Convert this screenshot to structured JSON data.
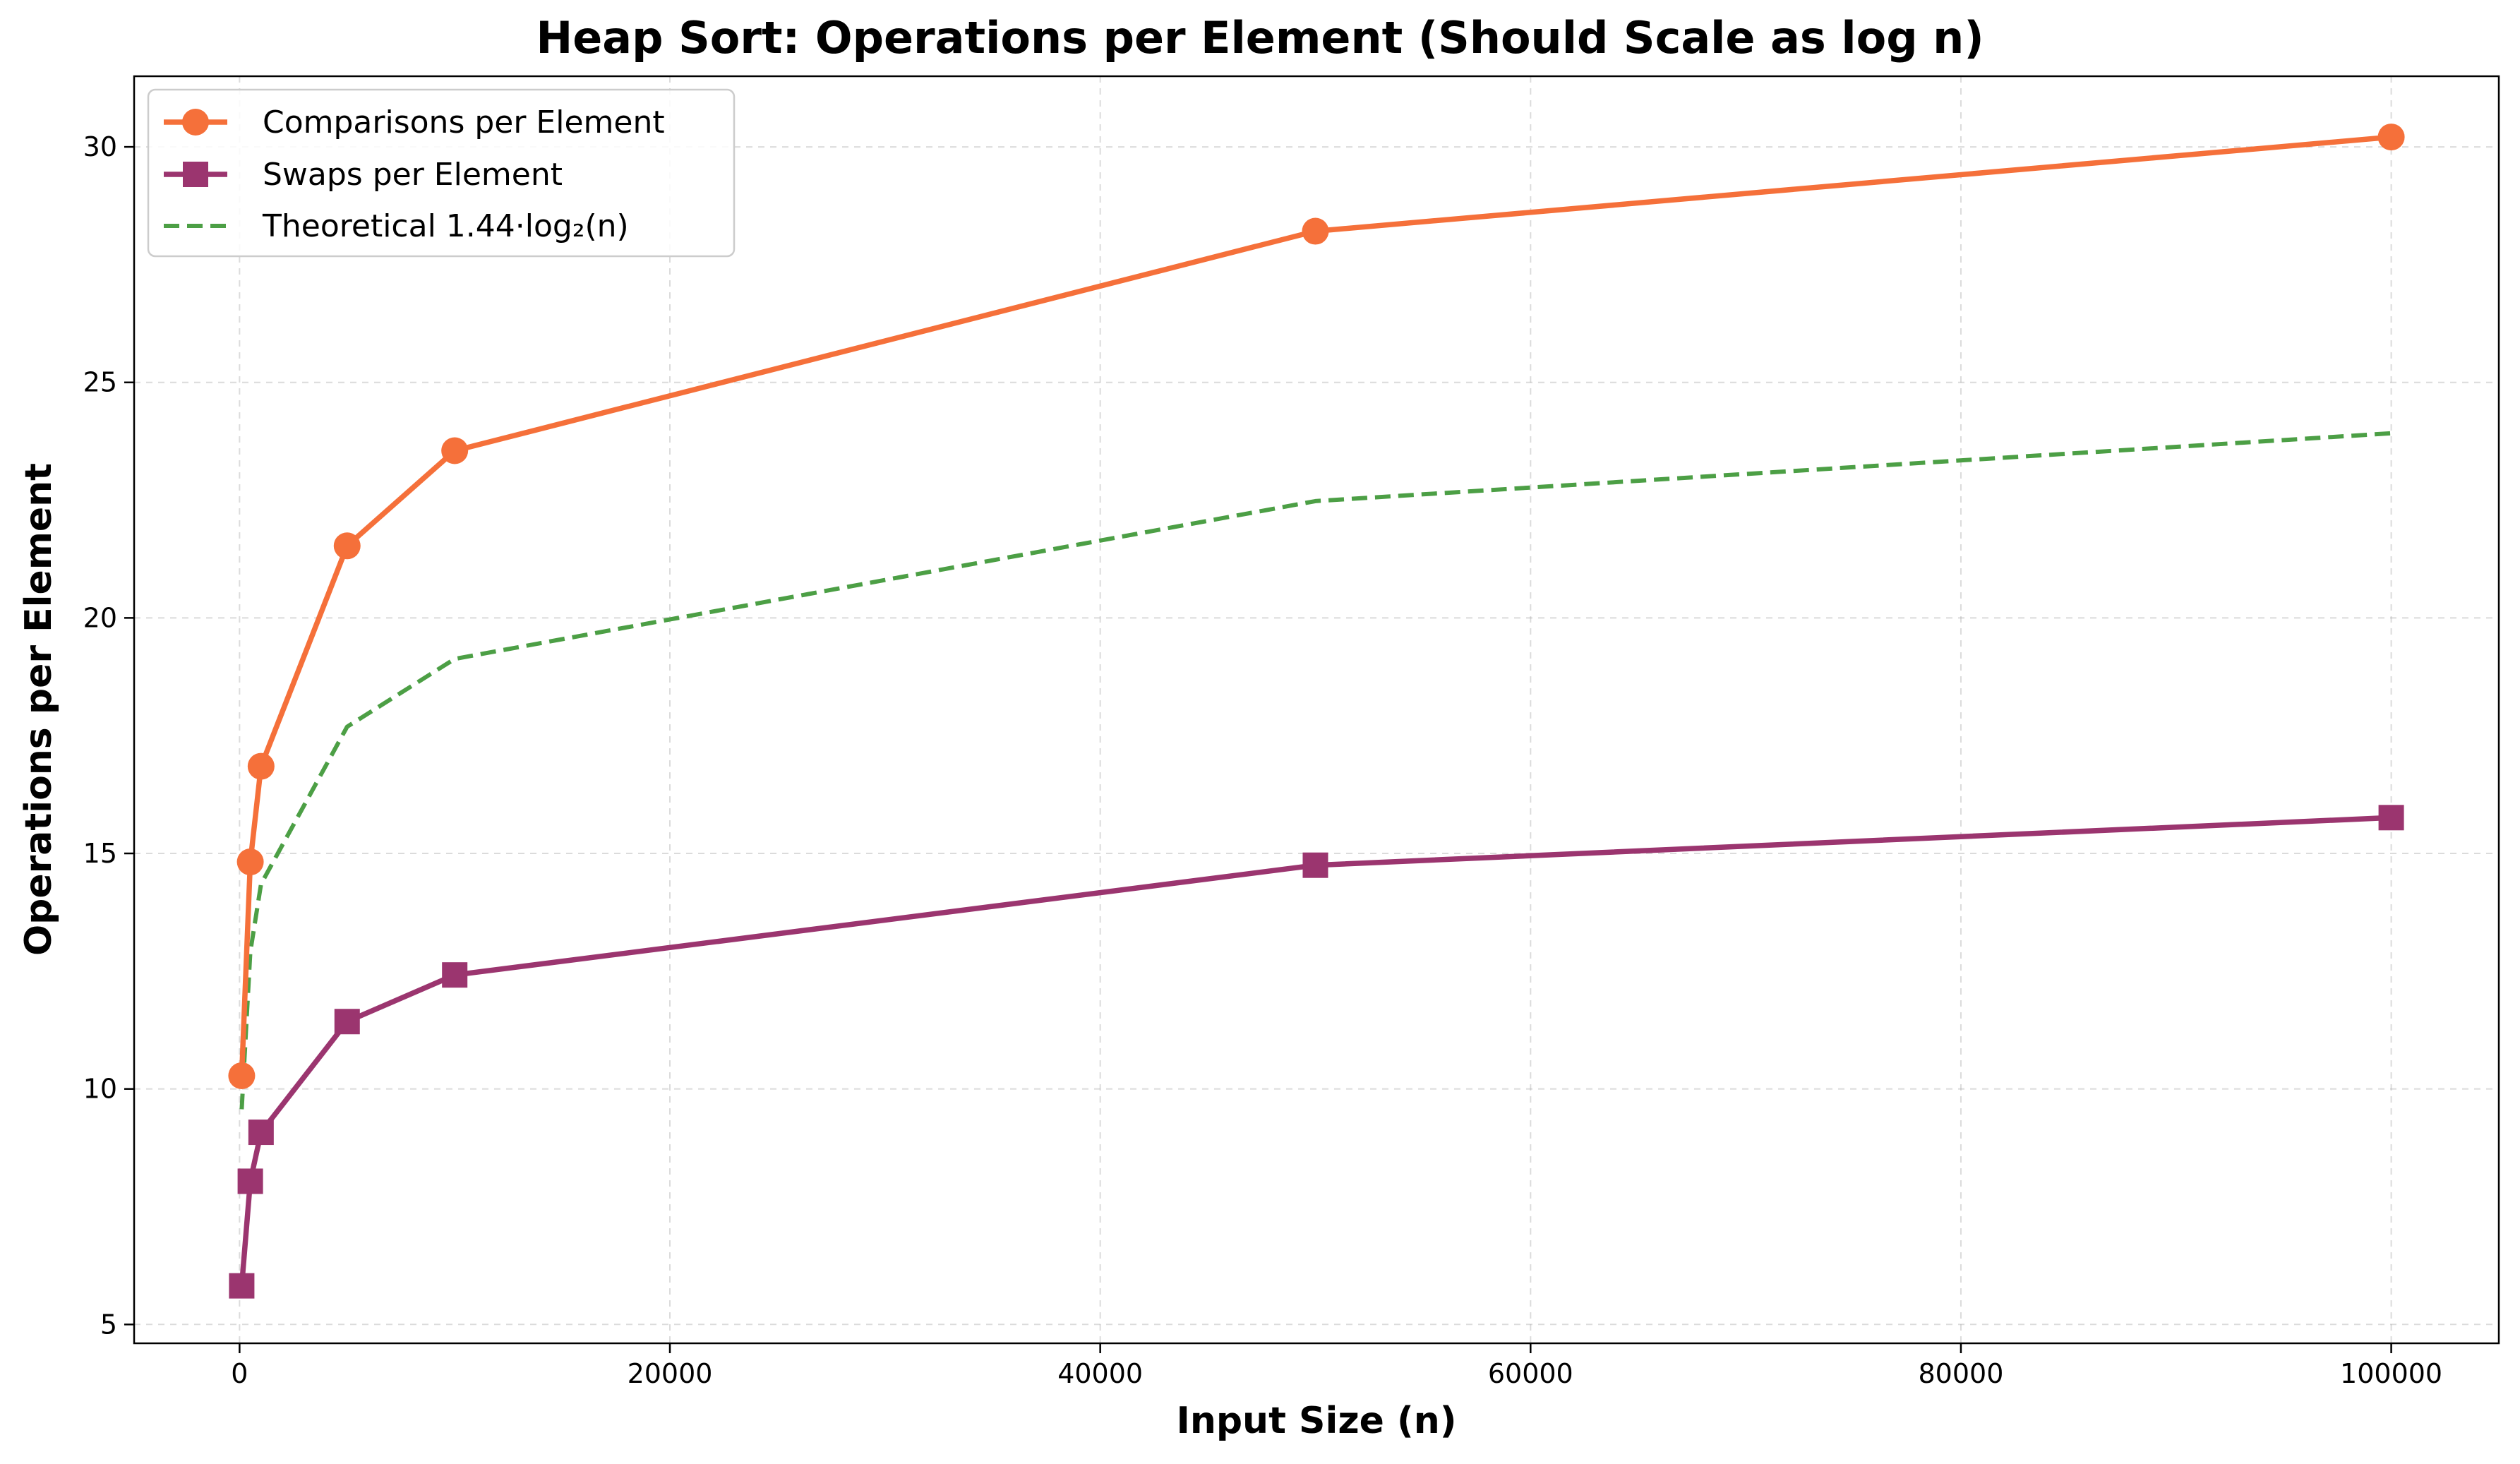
{
  "chart_data": {
    "type": "line",
    "title": "Heap Sort: Operations per Element (Should Scale as log n)",
    "xlabel": "Input Size (n)",
    "ylabel": "Operations per Element",
    "xlim": [
      -4900,
      105000
    ],
    "ylim": [
      4.6,
      31.5
    ],
    "xticks": [
      0,
      20000,
      40000,
      60000,
      80000,
      100000
    ],
    "yticks": [
      5,
      10,
      15,
      20,
      25,
      30
    ],
    "grid": true,
    "legend_position": "upper-left",
    "series": [
      {
        "name": "Comparisons per Element",
        "color": "#F5703A",
        "style": "solid",
        "marker": "circle",
        "points": [
          [
            100,
            10.28
          ],
          [
            500,
            14.82
          ],
          [
            1000,
            16.85
          ],
          [
            5000,
            21.53
          ],
          [
            10000,
            23.55
          ],
          [
            50000,
            28.21
          ],
          [
            100000,
            30.21
          ]
        ]
      },
      {
        "name": "Swaps per Element",
        "color": "#9B356F",
        "style": "solid",
        "marker": "square",
        "points": [
          [
            100,
            5.82
          ],
          [
            500,
            8.04
          ],
          [
            1000,
            9.08
          ],
          [
            5000,
            11.43
          ],
          [
            10000,
            12.42
          ],
          [
            50000,
            14.75
          ],
          [
            100000,
            15.76
          ]
        ]
      },
      {
        "name": "Theoretical 1.44·log₂(n)",
        "color": "#4C9F45",
        "style": "dashed",
        "marker": "none",
        "points": [
          [
            100,
            9.57
          ],
          [
            500,
            12.91
          ],
          [
            1000,
            14.35
          ],
          [
            5000,
            17.69
          ],
          [
            10000,
            19.13
          ],
          [
            50000,
            22.48
          ],
          [
            100000,
            23.92
          ]
        ]
      }
    ]
  }
}
